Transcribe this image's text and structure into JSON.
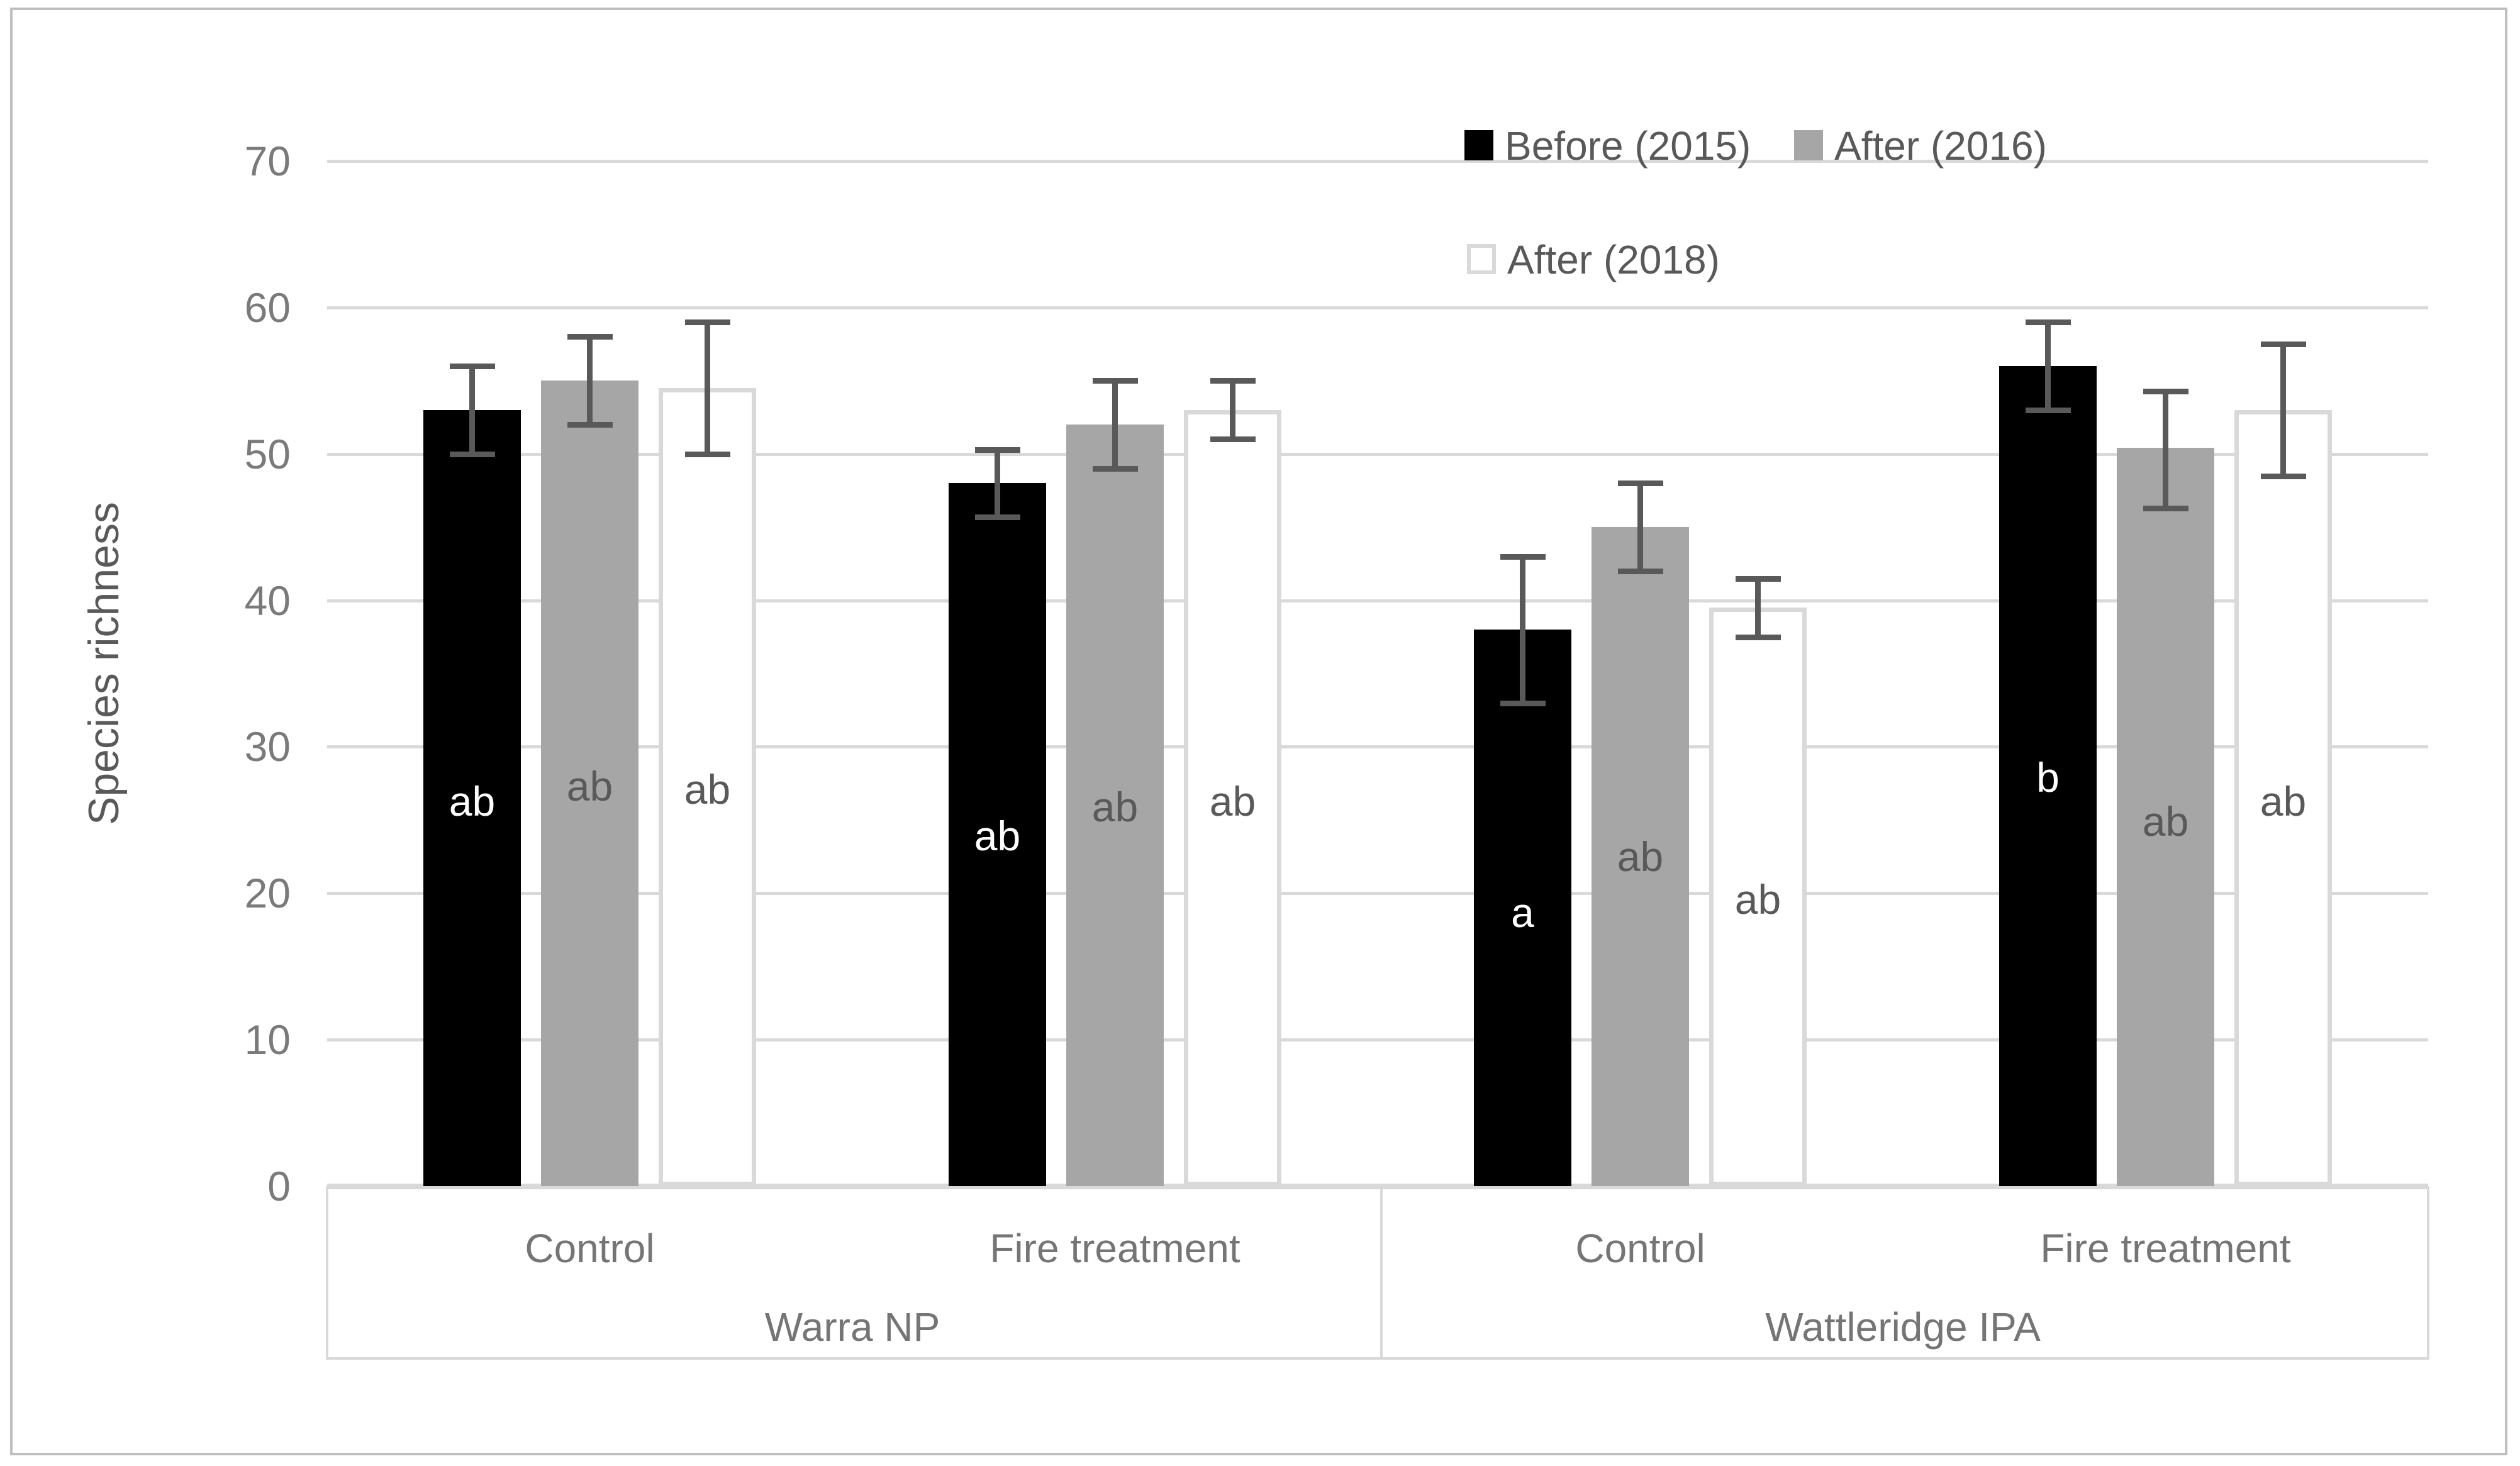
{
  "figure": {
    "ylabel": "Species richness"
  },
  "chart_data": {
    "type": "bar",
    "title": "",
    "xlabel": "",
    "ylabel": "Species richness",
    "ylim": [
      0,
      70
    ],
    "yticks": [
      0,
      10,
      20,
      30,
      40,
      50,
      60,
      70
    ],
    "grid": true,
    "grid_color": "#D9D9D9",
    "error_bar_color": "#595959",
    "legend_position": "top-right-inside",
    "group_labels": [
      "Control",
      "Fire treatment",
      "Control",
      "Fire treatment"
    ],
    "super_labels": [
      "Warra NP",
      "Wattleridge IPA"
    ],
    "legend": [
      {
        "label": "Before (2015)",
        "fill": "#000000",
        "stroke": "#000000"
      },
      {
        "label": "After (2016)",
        "fill": "#A6A6A6",
        "stroke": "#A6A6A6"
      },
      {
        "label": "After (2018)",
        "fill": "#FFFFFF",
        "stroke": "#D9D9D9"
      }
    ],
    "series": [
      {
        "name": "Before (2015)",
        "fill": "#000000",
        "stroke": "#000000",
        "values": [
          53,
          48,
          38,
          56
        ],
        "error_low": [
          50,
          45.7,
          33,
          53
        ],
        "error_high": [
          56,
          50.3,
          43,
          59
        ],
        "letters": [
          "ab",
          "ab",
          "a",
          "b"
        ],
        "letter_y": [
          26.3,
          23.9,
          18.7,
          27.9
        ],
        "letter_color": "#FFFFFF"
      },
      {
        "name": "After (2016)",
        "fill": "#A6A6A6",
        "stroke": "#A6A6A6",
        "values": [
          55,
          52,
          45,
          50.4
        ],
        "error_low": [
          52,
          49,
          42,
          46.3
        ],
        "error_high": [
          58,
          55,
          48,
          54.3
        ],
        "letters": [
          "ab",
          "ab",
          "ab",
          "ab"
        ],
        "letter_y": [
          27.3,
          25.9,
          22.5,
          24.9
        ],
        "letter_color": "#595959"
      },
      {
        "name": "After (2018)",
        "fill": "#FFFFFF",
        "stroke": "#D9D9D9",
        "values": [
          54.5,
          53,
          39.5,
          53
        ],
        "error_low": [
          50,
          51,
          37.5,
          48.5
        ],
        "error_high": [
          59,
          55,
          41.5,
          57.5
        ],
        "letters": [
          "ab",
          "ab",
          "ab",
          "ab"
        ],
        "letter_y": [
          27.1,
          26.3,
          19.6,
          26.3
        ],
        "letter_color": "#595959"
      }
    ]
  }
}
